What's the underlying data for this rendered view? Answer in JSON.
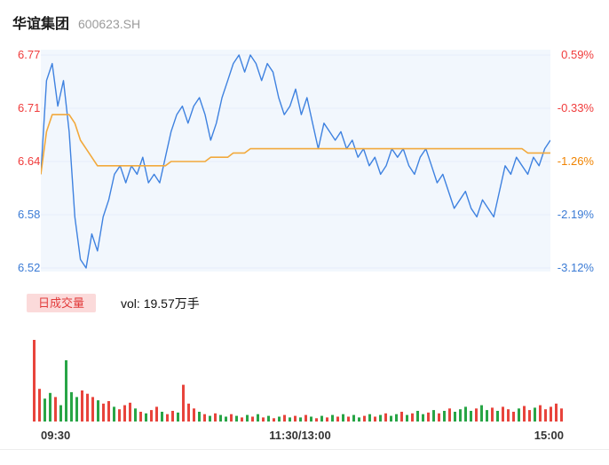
{
  "header": {
    "stock_name": "华谊集团",
    "stock_code": "600623.SH"
  },
  "volume_legend": {
    "badge_label": "日成交量",
    "volume_text": "vol: 19.57万手"
  },
  "chart_data": {
    "type": "line",
    "x_ticks": [
      "09:30",
      "11:30/13:00",
      "15:00"
    ],
    "style": {
      "plot_bg": "#f2f7fd",
      "grid_color": "#e6eefa",
      "up_label_color": "#f03b3b",
      "mid_label_color": "#f08300",
      "down_label_color": "#3b7bd5"
    },
    "price_axis": {
      "min": 6.52,
      "max": 6.77,
      "labels": [
        {
          "text": "6.77",
          "color": "#f03b3b"
        },
        {
          "text": "6.71",
          "color": "#f03b3b"
        },
        {
          "text": "6.64",
          "color": "#f03b3b"
        },
        {
          "text": "6.58",
          "color": "#3b7bd5"
        },
        {
          "text": "6.52",
          "color": "#3b7bd5"
        }
      ]
    },
    "pct_axis": {
      "labels": [
        {
          "text": "0.59%",
          "color": "#f03b3b"
        },
        {
          "text": "-0.33%",
          "color": "#f03b3b"
        },
        {
          "text": "-1.26%",
          "color": "#f08300"
        },
        {
          "text": "-2.19%",
          "color": "#3b7bd5"
        },
        {
          "text": "-3.12%",
          "color": "#3b7bd5"
        }
      ]
    },
    "series": [
      {
        "name": "price",
        "color": "#3f82e0",
        "values": [
          6.63,
          6.74,
          6.76,
          6.71,
          6.74,
          6.68,
          6.58,
          6.53,
          6.52,
          6.56,
          6.54,
          6.58,
          6.6,
          6.63,
          6.64,
          6.62,
          6.64,
          6.63,
          6.65,
          6.62,
          6.63,
          6.62,
          6.65,
          6.68,
          6.7,
          6.71,
          6.69,
          6.71,
          6.72,
          6.7,
          6.67,
          6.69,
          6.72,
          6.74,
          6.76,
          6.77,
          6.75,
          6.77,
          6.76,
          6.74,
          6.76,
          6.75,
          6.72,
          6.7,
          6.71,
          6.73,
          6.7,
          6.72,
          6.69,
          6.66,
          6.69,
          6.68,
          6.67,
          6.68,
          6.66,
          6.67,
          6.65,
          6.66,
          6.64,
          6.65,
          6.63,
          6.64,
          6.66,
          6.65,
          6.66,
          6.64,
          6.63,
          6.65,
          6.66,
          6.64,
          6.62,
          6.63,
          6.61,
          6.59,
          6.6,
          6.61,
          6.59,
          6.58,
          6.6,
          6.59,
          6.58,
          6.61,
          6.64,
          6.63,
          6.65,
          6.64,
          6.63,
          6.65,
          6.64,
          6.66,
          6.67
        ]
      },
      {
        "name": "avg-price",
        "color": "#f2a93c",
        "values": [
          6.63,
          6.68,
          6.7,
          6.7,
          6.7,
          6.7,
          6.69,
          6.67,
          6.66,
          6.65,
          6.64,
          6.64,
          6.64,
          6.64,
          6.64,
          6.64,
          6.64,
          6.64,
          6.64,
          6.64,
          6.64,
          6.64,
          6.64,
          6.645,
          6.645,
          6.645,
          6.645,
          6.645,
          6.645,
          6.645,
          6.65,
          6.65,
          6.65,
          6.65,
          6.655,
          6.655,
          6.655,
          6.66,
          6.66,
          6.66,
          6.66,
          6.66,
          6.66,
          6.66,
          6.66,
          6.66,
          6.66,
          6.66,
          6.66,
          6.66,
          6.66,
          6.66,
          6.66,
          6.66,
          6.66,
          6.66,
          6.66,
          6.66,
          6.66,
          6.66,
          6.66,
          6.66,
          6.66,
          6.66,
          6.66,
          6.66,
          6.66,
          6.66,
          6.66,
          6.66,
          6.66,
          6.66,
          6.66,
          6.66,
          6.66,
          6.66,
          6.66,
          6.66,
          6.66,
          6.66,
          6.66,
          6.66,
          6.66,
          6.66,
          6.66,
          6.66,
          6.655,
          6.655,
          6.655,
          6.655,
          6.655
        ]
      }
    ],
    "volume": {
      "up_color": "#e8443c",
      "down_color": "#28a546",
      "values": [
        100,
        40,
        28,
        35,
        30,
        20,
        75,
        36,
        30,
        38,
        34,
        30,
        26,
        22,
        25,
        18,
        15,
        20,
        23,
        16,
        12,
        10,
        14,
        18,
        12,
        9,
        13,
        11,
        45,
        22,
        16,
        12,
        9,
        7,
        10,
        8,
        6,
        9,
        7,
        5,
        8,
        6,
        9,
        5,
        7,
        4,
        6,
        8,
        5,
        7,
        5,
        8,
        6,
        4,
        7,
        5,
        8,
        6,
        9,
        6,
        8,
        5,
        7,
        9,
        6,
        8,
        10,
        7,
        9,
        12,
        8,
        10,
        13,
        9,
        11,
        14,
        10,
        13,
        16,
        12,
        15,
        18,
        13,
        16,
        20,
        14,
        17,
        13,
        18,
        15,
        12,
        16,
        19,
        14,
        17,
        20,
        15,
        18,
        22,
        16
      ],
      "directions": [
        "u",
        "u",
        "d",
        "d",
        "u",
        "d",
        "d",
        "d",
        "d",
        "u",
        "u",
        "u",
        "d",
        "u",
        "u",
        "d",
        "u",
        "u",
        "u",
        "d",
        "u",
        "d",
        "u",
        "u",
        "d",
        "u",
        "u",
        "d",
        "u",
        "u",
        "u",
        "d",
        "u",
        "d",
        "u",
        "d",
        "d",
        "u",
        "d",
        "u",
        "d",
        "u",
        "d",
        "u",
        "d",
        "u",
        "d",
        "u",
        "d",
        "u",
        "d",
        "u",
        "d",
        "u",
        "d",
        "u",
        "d",
        "u",
        "d",
        "u",
        "d",
        "d",
        "u",
        "d",
        "u",
        "d",
        "u",
        "d",
        "d",
        "u",
        "d",
        "u",
        "d",
        "d",
        "u",
        "d",
        "u",
        "d",
        "u",
        "d",
        "d",
        "d",
        "d",
        "u",
        "d",
        "d",
        "u",
        "d",
        "u",
        "u",
        "u",
        "d",
        "u",
        "u",
        "d",
        "u",
        "u",
        "u",
        "u",
        "u"
      ]
    }
  }
}
